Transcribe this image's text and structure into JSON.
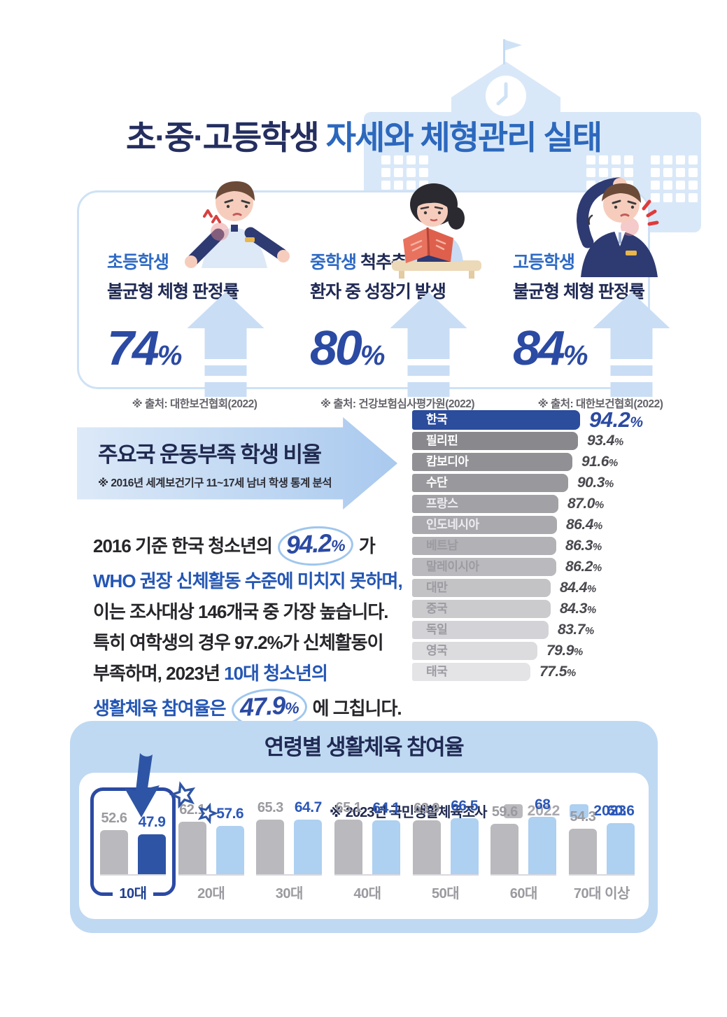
{
  "colors": {
    "navy": "#242e5f",
    "title_blue": "#2c68bd",
    "accent_blue": "#2b4aa3",
    "light_blue": "#bfd9f2",
    "building_blue": "#d9e8f8",
    "korea_bar": "#2c4c9c",
    "bar_2022": "#b9b9be",
    "bar_2023": "#aed0f1",
    "bar_2023_highlight": "#2e55a5"
  },
  "header": {
    "title_dark": "초·중·고등학생",
    "title_blue": " 자세와 체형관리 실태"
  },
  "stat_cards": [
    {
      "title_accent": "초등학생",
      "title_rest": "",
      "subtitle": "불균형 체형 판정률",
      "value": "74",
      "unit": "%",
      "source": "※ 출처: 대한보건협회(2022)"
    },
    {
      "title_accent": "중학생",
      "title_rest": " 척추측만",
      "subtitle": "환자 중 성장기 발생",
      "value": "80",
      "unit": "%",
      "source": "※ 출처: 건강보험심사평가원(2022)"
    },
    {
      "title_accent": "고등학생",
      "title_rest": "",
      "subtitle": "불균형 체형 판정률",
      "value": "84",
      "unit": "%",
      "source": "※ 출처: 대한보건협회(2022)"
    }
  ],
  "world_section": {
    "arrow_title": "주요국 운동부족 학생 비율",
    "arrow_subtitle": "※ 2016년 세계보건기구 11~17세 남녀 학생 통계 분석",
    "paragraph_lines": [
      [
        {
          "t": "2016 기준 한국 청소년의 ",
          "c": "plain"
        },
        {
          "t": "94.2",
          "c": "big"
        },
        {
          "t": "%",
          "c": "bigu"
        },
        {
          "t": " 가",
          "c": "plain"
        }
      ],
      [
        {
          "t": "WHO 권장 신체활동 수준에 미치지 못하며,",
          "c": "blue"
        }
      ],
      [
        {
          "t": "이는 조사대상 146개국 중 가장 높습니다.",
          "c": "plain"
        }
      ],
      [
        {
          "t": "특히 여학생의 경우 97.2%가 신체활동이",
          "c": "plain"
        }
      ],
      [
        {
          "t": "부족하며, 2023년 ",
          "c": "plain"
        },
        {
          "t": "10대 청소년의",
          "c": "blue"
        }
      ],
      [
        {
          "t": "생활체육 참여율은 ",
          "c": "blue"
        },
        {
          "t": "47.9",
          "c": "big"
        },
        {
          "t": "%",
          "c": "bigu"
        },
        {
          "t": " 에 그칩니다.",
          "c": "plain"
        }
      ]
    ]
  },
  "age_section": {
    "title": "연령별 생활체육 참여율",
    "legend_note": "※ 2023년 국민생활체육조사"
  },
  "chart_data": [
    {
      "type": "bar",
      "orientation": "horizontal",
      "title": "주요국 운동부족 학생 비율",
      "subtitle": "※ 2016년 세계보건기구 11~17세 남녀 학생 통계 분석",
      "unit": "%",
      "categories": [
        "한국",
        "필리핀",
        "캄보디아",
        "수단",
        "프랑스",
        "인도네시아",
        "베트남",
        "말레이시아",
        "대만",
        "중국",
        "독일",
        "영국",
        "태국"
      ],
      "values": [
        94.2,
        93.4,
        91.6,
        90.3,
        87.0,
        86.4,
        86.3,
        86.2,
        84.4,
        84.3,
        83.7,
        79.9,
        77.5
      ],
      "value_labels": [
        "94.2",
        "93.4",
        "91.6",
        "90.3",
        "87.0",
        "86.4",
        "86.3",
        "86.2",
        "84.4",
        "84.3",
        "83.7",
        "79.9",
        "77.5"
      ],
      "highlight_index": 0,
      "highlight_color": "#2c4c9c",
      "legend_position": "none",
      "grid": false
    },
    {
      "type": "bar",
      "orientation": "vertical",
      "grouped": true,
      "title": "연령별 생활체육 참여율",
      "note": "※ 2023년 국민생활체육조사",
      "categories": [
        "10대",
        "20대",
        "30대",
        "40대",
        "50대",
        "60대",
        "70대 이상"
      ],
      "series": [
        {
          "name": "2022",
          "color": "#b9b9be",
          "values": [
            52.6,
            62.1,
            65.3,
            65.1,
            63.9,
            59.6,
            54.3
          ],
          "value_labels": [
            "52.6",
            "62.1",
            "65.3",
            "65.1",
            "63.9",
            "59.6",
            "54.3"
          ]
        },
        {
          "name": "2023",
          "color": "#aed0f1",
          "values": [
            47.9,
            57.6,
            64.7,
            64.1,
            66.5,
            68,
            60.6
          ],
          "value_labels": [
            "47.9",
            "57.6",
            "64.7",
            "64.1",
            "66.5",
            "68",
            "60.6"
          ]
        }
      ],
      "highlight_category": "10대",
      "highlight_bar_color": "#2e55a5",
      "ylim": [
        0,
        80
      ],
      "legend_position": "top-right",
      "grid": false
    }
  ]
}
